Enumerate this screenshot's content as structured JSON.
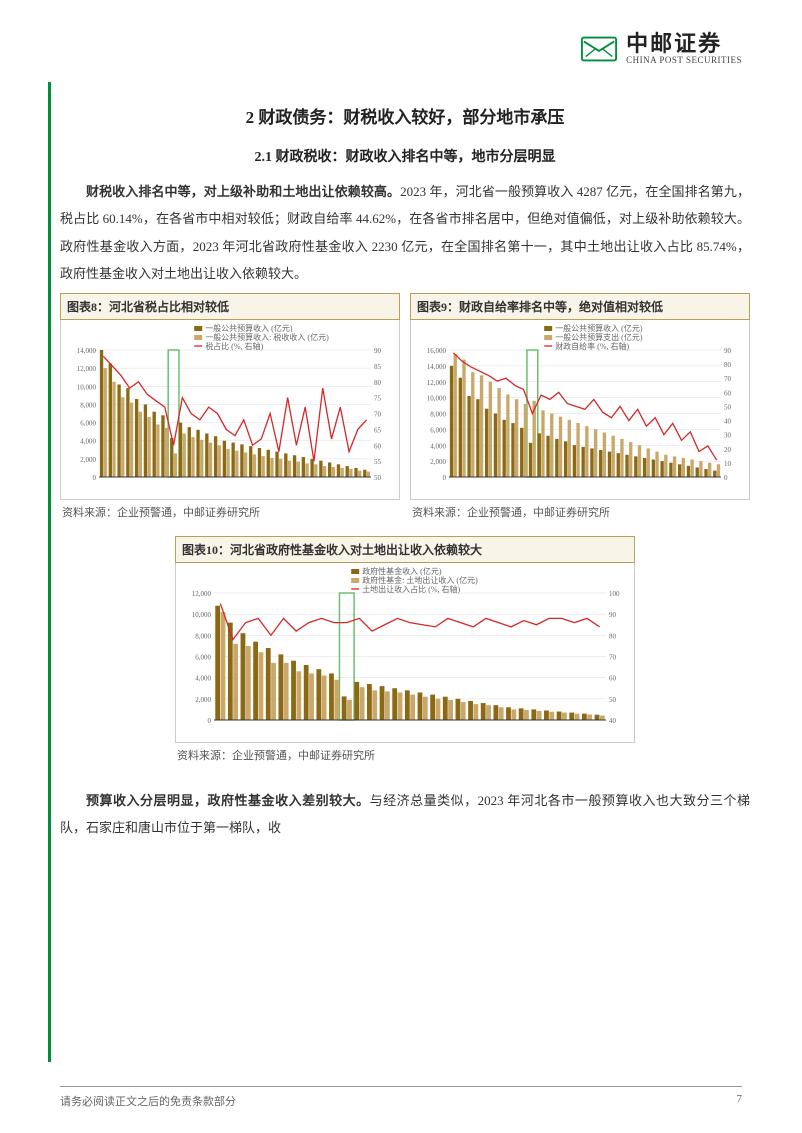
{
  "header": {
    "logo_cn": "中邮证券",
    "logo_en": "CHINA POST SECURITIES"
  },
  "section": {
    "title": "2 财政债务：财税收入较好，部分地市承压",
    "subsection_title": "2.1 财政税收：财政收入排名中等，地市分层明显",
    "para1_bold": "财税收入排名中等，对上级补助和土地出让依赖较高。",
    "para1_rest": "2023 年，河北省一般预算收入 4287 亿元，在全国排名第九，税占比 60.14%，在各省市中相对较低；财政自给率 44.62%，在各省市排名居中，但绝对值偏低，对上级补助依赖较大。政府性基金收入方面，2023 年河北省政府性基金收入 2230 亿元，在全国排名第十一，其中土地出让收入占比 85.74%，政府性基金收入对土地出让收入依赖较大。",
    "para2_bold": "预算收入分层明显，政府性基金收入差别较大。",
    "para2_rest": "与经济总量类似，2023 年河北各市一般预算收入也大致分三个梯队，石家庄和唐山市位于第一梯队，收"
  },
  "charts": {
    "c8": {
      "title": "图表8：河北省税占比相对较低",
      "source": "资料来源：企业预警通，中邮证券研究所",
      "type": "bar+line",
      "legend": [
        "一般公共预算收入 (亿元)",
        "一般公共预算收入: 税收收入 (亿元)",
        "税占比 (%, 右轴)"
      ],
      "ylim_left": [
        0,
        14000
      ],
      "ytick_left": 2000,
      "ylim_right": [
        50,
        90
      ],
      "ytick_right": 5,
      "bar1_color": "#8b6914",
      "bar2_color": "#c9a86a",
      "line_color": "#d62728",
      "grid_color": "#dddddd",
      "bg": "#ffffff",
      "highlight_index": 8,
      "highlight_color": "#6fbf6f",
      "n_bars": 31,
      "bar1_values": [
        14000,
        12500,
        10200,
        9800,
        8600,
        8000,
        7200,
        6800,
        4300,
        6000,
        5500,
        5200,
        4800,
        4500,
        4000,
        3800,
        3600,
        3400,
        3200,
        3000,
        2800,
        2600,
        2400,
        2200,
        2000,
        1800,
        1600,
        1400,
        1200,
        1000,
        800
      ],
      "bar2_values": [
        12000,
        10500,
        8800,
        8200,
        7200,
        6600,
        5800,
        5400,
        2600,
        4800,
        4400,
        4100,
        3800,
        3500,
        3100,
        2900,
        2700,
        2500,
        2300,
        2100,
        2000,
        1800,
        1700,
        1500,
        1400,
        1200,
        1100,
        1000,
        900,
        700,
        600
      ],
      "line_values": [
        88,
        85,
        82,
        78,
        80,
        76,
        74,
        72,
        60,
        75,
        70,
        68,
        72,
        70,
        65,
        63,
        68,
        60,
        62,
        70,
        58,
        75,
        60,
        72,
        55,
        78,
        62,
        72,
        58,
        65,
        68
      ]
    },
    "c9": {
      "title": "图表9：财政自给率排名中等，绝对值相对较低",
      "source": "资料来源：企业预警通，中邮证券研究所",
      "type": "bar+line",
      "legend": [
        "一般公共预算收入 (亿元)",
        "一般公共预算支出 (亿元)",
        "财政自给率 (%, 右轴)"
      ],
      "ylim_left": [
        0,
        16000
      ],
      "ytick_left": 2000,
      "ylim_right": [
        0,
        90
      ],
      "ytick_right": 10,
      "bar1_color": "#8b6914",
      "bar2_color": "#c9a86a",
      "line_color": "#d62728",
      "grid_color": "#dddddd",
      "bg": "#ffffff",
      "highlight_index": 9,
      "highlight_color": "#6fbf6f",
      "n_bars": 31,
      "bar1_values": [
        14000,
        12500,
        10200,
        9800,
        8600,
        8000,
        7200,
        6800,
        6200,
        4300,
        5500,
        5200,
        4800,
        4500,
        4000,
        3800,
        3600,
        3400,
        3200,
        3000,
        2800,
        2600,
        2400,
        2200,
        2000,
        1800,
        1600,
        1400,
        1200,
        1000,
        800
      ],
      "bar2_values": [
        15500,
        14800,
        13200,
        12800,
        12000,
        11200,
        10400,
        9800,
        9200,
        9600,
        8400,
        8000,
        7600,
        7200,
        6800,
        6400,
        6000,
        5600,
        5200,
        4800,
        4400,
        4000,
        3600,
        3200,
        2800,
        2600,
        2400,
        2200,
        2000,
        1800,
        1600
      ],
      "line_values": [
        88,
        82,
        78,
        75,
        72,
        68,
        70,
        65,
        62,
        45,
        58,
        55,
        60,
        52,
        50,
        48,
        55,
        46,
        42,
        50,
        40,
        48,
        36,
        42,
        30,
        38,
        26,
        32,
        18,
        22,
        12
      ]
    },
    "c10": {
      "title": "图表10：河北省政府性基金收入对土地出让收入依赖较大",
      "source": "资料来源：企业预警通，中邮证券研究所",
      "type": "bar+line",
      "legend": [
        "政府性基金收入 (亿元)",
        "政府性基金: 土地出让收入 (亿元)",
        "土地出让收入占比 (%, 右轴)"
      ],
      "ylim_left": [
        0,
        12000
      ],
      "ytick_left": 2000,
      "ylim_right": [
        40,
        100
      ],
      "ytick_right": 10,
      "bar1_color": "#8b6914",
      "bar2_color": "#c9a86a",
      "line_color": "#d62728",
      "grid_color": "#dddddd",
      "bg": "#ffffff",
      "highlight_index": 10,
      "highlight_color": "#6fbf6f",
      "n_bars": 31,
      "bar1_values": [
        10800,
        9200,
        8200,
        7400,
        6800,
        6200,
        5600,
        5200,
        4800,
        4400,
        2230,
        3600,
        3400,
        3200,
        3000,
        2800,
        2600,
        2400,
        2200,
        2000,
        1800,
        1600,
        1400,
        1200,
        1100,
        1000,
        900,
        800,
        700,
        600,
        500
      ],
      "bar2_values": [
        10200,
        7200,
        7000,
        6400,
        5400,
        5400,
        4600,
        4400,
        4200,
        3800,
        1910,
        3100,
        2800,
        2700,
        2600,
        2400,
        2200,
        2000,
        1900,
        1700,
        1500,
        1400,
        1200,
        1000,
        950,
        850,
        780,
        700,
        600,
        520,
        420
      ],
      "line_values": [
        95,
        78,
        86,
        88,
        80,
        88,
        82,
        86,
        88,
        86,
        86,
        88,
        82,
        85,
        88,
        86,
        85,
        84,
        88,
        86,
        84,
        88,
        86,
        84,
        87,
        85,
        88,
        88,
        86,
        88,
        84
      ]
    }
  },
  "footer": {
    "disclaimer": "请务必阅读正文之后的免责条款部分",
    "page": "7"
  }
}
